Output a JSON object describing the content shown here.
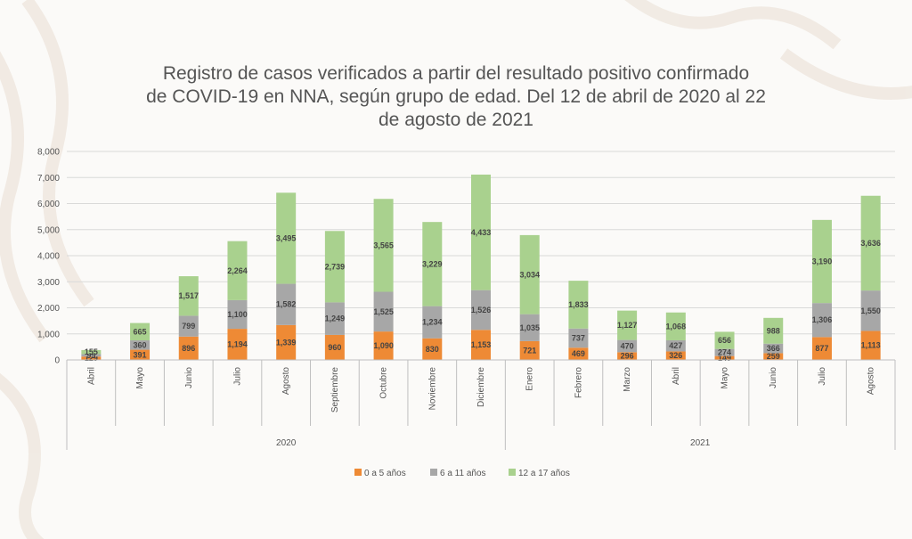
{
  "title_lines": [
    "Registro de casos verificados a partir del resultado positivo confirmado",
    "de COVID-19 en NNA, según grupo de edad. Del 12 de abril de 2020 al 22",
    "de agosto de 2021"
  ],
  "colors": {
    "s0": "#ee8a35",
    "s1": "#a7a7a7",
    "s2": "#a9d18e",
    "grid": "#d9d9d9",
    "axis": "#bfbfbf"
  },
  "chart_data": {
    "type": "bar",
    "stacked": true,
    "title": "Registro de casos verificados a partir del resultado positivo confirmado de COVID-19 en NNA, según grupo de edad. Del 12 de abril de 2020 al 22 de agosto de 2021",
    "xlabel": "",
    "ylabel": "",
    "ylim": [
      0,
      8000
    ],
    "yticks": [
      0,
      1000,
      2000,
      3000,
      4000,
      5000,
      6000,
      7000,
      8000
    ],
    "ytick_labels": [
      "0",
      "1,000",
      "2,000",
      "3,000",
      "4,000",
      "5,000",
      "6,000",
      "7,000",
      "8,000"
    ],
    "grid": true,
    "legend_position": "bottom",
    "categories": [
      "Abril",
      "Mayo",
      "Junio",
      "Julio",
      "Agosto",
      "Septiembre",
      "Octubre",
      "Noviembre",
      "Diciembre",
      "Enero",
      "Febrero",
      "Marzo",
      "Abril",
      "Mayo",
      "Junio",
      "Julio",
      "Agosto"
    ],
    "groups": [
      {
        "label": "2020",
        "start": 0,
        "end": 8
      },
      {
        "label": "2021",
        "start": 9,
        "end": 16
      }
    ],
    "series": [
      {
        "name": "0 a 5 años",
        "values": [
          129,
          391,
          896,
          1194,
          1339,
          960,
          1090,
          830,
          1153,
          721,
          469,
          296,
          326,
          149,
          259,
          877,
          1113
        ],
        "labels": [
          "129",
          "391",
          "896",
          "1,194",
          "1,339",
          "960",
          "1,090",
          "830",
          "1,153",
          "721",
          "469",
          "296",
          "326",
          "149",
          "259",
          "877",
          "1,113"
        ]
      },
      {
        "name": "6 a 11 años",
        "values": [
          95,
          360,
          799,
          1100,
          1582,
          1249,
          1525,
          1234,
          1526,
          1035,
          737,
          470,
          427,
          274,
          366,
          1306,
          1550
        ],
        "labels": [
          "95",
          "360",
          "799",
          "1,100",
          "1,582",
          "1,249",
          "1,525",
          "1,234",
          "1,526",
          "1,035",
          "737",
          "470",
          "427",
          "274",
          "366",
          "1,306",
          "1,550"
        ]
      },
      {
        "name": "12 a 17  años",
        "values": [
          155,
          665,
          1517,
          2264,
          3495,
          2739,
          3565,
          3229,
          4433,
          3034,
          1833,
          1127,
          1068,
          656,
          988,
          3190,
          3636
        ],
        "labels": [
          "155",
          "665",
          "1,517",
          "2,264",
          "3,495",
          "2,739",
          "3,565",
          "3,229",
          "4,433",
          "3,034",
          "1,833",
          "1,127",
          "1,068",
          "656",
          "988",
          "3,190",
          "3,636"
        ]
      }
    ]
  }
}
